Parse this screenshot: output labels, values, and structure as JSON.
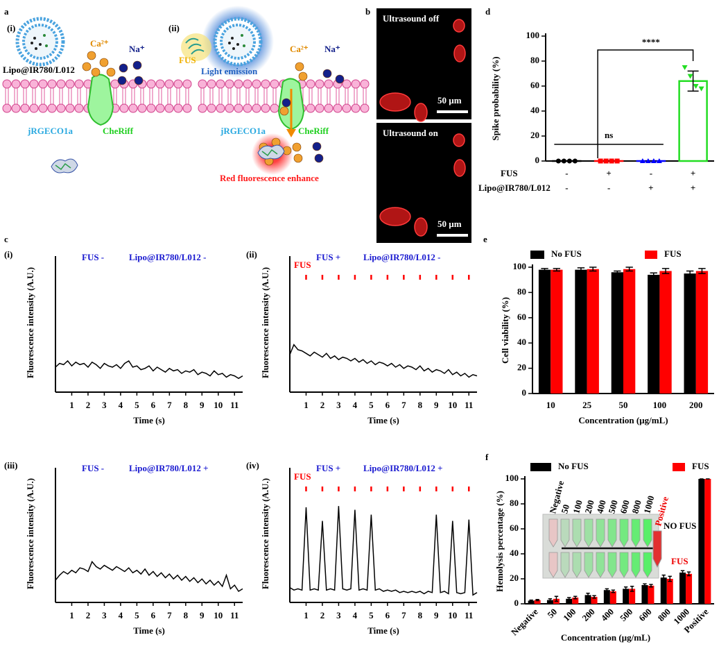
{
  "panel_labels": [
    "a",
    "b",
    "c",
    "d",
    "e",
    "f"
  ],
  "diagram": {
    "sub_labels": [
      "(i)",
      "(ii)"
    ],
    "ions": [
      "Ca²⁺",
      "Na⁺"
    ],
    "liposome": "Lipo@IR780/L012",
    "sensor": "jRGECO1a",
    "channel": "CheRiff",
    "stimulus": "FUS",
    "emission": "Light emission",
    "result": "Red fluorescence enhance"
  },
  "images": {
    "titles": [
      "Ultrasound off",
      "Ultrasound  on"
    ],
    "scale_bar": "50 µm"
  },
  "chart_data": [
    {
      "type": "bar",
      "ylabel": "Spike probability (%)",
      "ylim": [
        0,
        100
      ],
      "yticks": [
        0,
        20,
        40,
        60,
        80,
        100
      ],
      "values": [
        0,
        0,
        0,
        64
      ],
      "errors": [
        0,
        0,
        0,
        8
      ],
      "colors": [
        "#000000",
        "#ff0000",
        "#0000ff",
        "#22dd22"
      ],
      "points": [
        [
          0,
          0,
          0,
          0
        ],
        [
          0,
          0,
          0,
          0
        ],
        [
          0,
          0,
          0,
          0
        ],
        [
          75,
          68,
          60,
          58
        ]
      ],
      "conditions": [
        {
          "name": "FUS",
          "labels": [
            "-",
            "+",
            "-",
            "+"
          ]
        },
        {
          "name": "Lipo@IR780/L012",
          "labels": [
            "-",
            "-",
            "+",
            "+"
          ]
        }
      ],
      "annotations": [
        "ns",
        "****"
      ]
    },
    {
      "type": "bar",
      "ylabel": "Cell viability (%)",
      "xlabel": "Concentration  (µg/mL)",
      "ylim": [
        0,
        100
      ],
      "yticks": [
        0,
        20,
        40,
        60,
        80,
        100
      ],
      "categories": [
        "10",
        "25",
        "50",
        "100",
        "200"
      ],
      "series": [
        {
          "name": "No FUS",
          "color": "#000000",
          "values": [
            98,
            98,
            96,
            94,
            95
          ],
          "errors": [
            1,
            1.5,
            1,
            1.5,
            2
          ]
        },
        {
          "name": "FUS",
          "color": "#ff0000",
          "values": [
            98,
            98.5,
            98.5,
            97,
            97
          ],
          "errors": [
            1,
            1.5,
            1.5,
            2,
            2
          ]
        }
      ]
    },
    {
      "type": "bar",
      "ylabel": "Hemolysis percentage (%)",
      "xlabel": "Concentration (µg/mL)",
      "ylim": [
        0,
        100
      ],
      "yticks": [
        0,
        20,
        40,
        60,
        80,
        100
      ],
      "categories": [
        "Negative",
        "50",
        "100",
        "200",
        "400",
        "500",
        "600",
        "800",
        "1000",
        "Positive"
      ],
      "series": [
        {
          "name": "No FUS",
          "color": "#000000",
          "values": [
            2.5,
            3,
            4,
            7,
            11,
            12,
            15,
            21,
            25,
            100
          ],
          "errors": [
            0.5,
            1,
            1,
            1.5,
            1,
            1.5,
            1,
            2,
            1.5,
            0
          ]
        },
        {
          "name": "FUS",
          "color": "#ff0000",
          "values": [
            3,
            4,
            5,
            5.5,
            10,
            12,
            14.5,
            20,
            24,
            100
          ],
          "errors": [
            0.5,
            2,
            1,
            1,
            1,
            2,
            1,
            2,
            1.5,
            0
          ]
        }
      ],
      "inset": {
        "tube_labels": [
          "Negative",
          "50",
          "100",
          "200",
          "400",
          "500",
          "600",
          "800",
          "1000",
          "Positive"
        ],
        "row_labels": [
          "NO FUS",
          "FUS"
        ]
      }
    },
    {
      "type": "line",
      "panel": "(i)",
      "conditions": [
        "FUS  -",
        "Lipo@IR780/L012  -"
      ],
      "ylabel": "Fluorescence intensity (A.U.)",
      "xlabel": "Time (s)",
      "xlim": [
        0,
        11.5
      ],
      "ylim": [
        0,
        100
      ],
      "xticks": [
        1,
        2,
        3,
        4,
        5,
        6,
        7,
        8,
        9,
        10,
        11
      ],
      "color": "#000000",
      "x": [
        0,
        0.25,
        0.5,
        0.75,
        1,
        1.25,
        1.5,
        1.75,
        2,
        2.25,
        2.5,
        2.75,
        3,
        3.25,
        3.5,
        3.75,
        4,
        4.25,
        4.5,
        4.75,
        5,
        5.25,
        5.5,
        5.75,
        6,
        6.25,
        6.5,
        6.75,
        7,
        7.25,
        7.5,
        7.75,
        8,
        8.25,
        8.5,
        8.75,
        9,
        9.25,
        9.5,
        9.75,
        10,
        10.25,
        10.5,
        10.75,
        11,
        11.25,
        11.5
      ],
      "values": [
        20,
        23,
        22,
        25,
        21,
        24,
        22,
        23,
        20,
        24,
        22,
        19,
        23,
        21,
        20,
        22,
        19,
        23,
        25,
        20,
        21,
        18,
        19,
        21,
        17,
        20,
        18,
        16,
        19,
        17,
        18,
        15,
        17,
        16,
        18,
        14,
        16,
        15,
        13,
        17,
        14,
        15,
        12,
        14,
        13,
        11,
        13
      ]
    },
    {
      "type": "line",
      "panel": "(ii)",
      "conditions": [
        "FUS  +",
        "Lipo@IR780/L012  -"
      ],
      "ylabel": "Fluorescence intensity (A.U.)",
      "xlabel": "Time (s)",
      "xlim": [
        0,
        11.5
      ],
      "ylim": [
        0,
        100
      ],
      "xticks": [
        1,
        2,
        3,
        4,
        5,
        6,
        7,
        8,
        9,
        10,
        11
      ],
      "color": "#000000",
      "pulse_label": "FUS",
      "pulse_color": "#ff0000",
      "pulse_x": [
        1,
        2,
        3,
        4,
        5,
        6,
        7,
        8,
        9,
        10,
        11
      ],
      "x": [
        0,
        0.25,
        0.5,
        0.75,
        1,
        1.25,
        1.5,
        1.75,
        2,
        2.25,
        2.5,
        2.75,
        3,
        3.25,
        3.5,
        3.75,
        4,
        4.25,
        4.5,
        4.75,
        5,
        5.25,
        5.5,
        5.75,
        6,
        6.25,
        6.5,
        6.75,
        7,
        7.25,
        7.5,
        7.75,
        8,
        8.25,
        8.5,
        8.75,
        9,
        9.25,
        9.5,
        9.75,
        10,
        10.25,
        10.5,
        10.75,
        11,
        11.25,
        11.5
      ],
      "values": [
        30,
        38,
        34,
        33,
        31,
        29,
        32,
        30,
        28,
        31,
        27,
        29,
        26,
        28,
        27,
        25,
        27,
        24,
        26,
        23,
        25,
        22,
        24,
        23,
        21,
        23,
        20,
        22,
        19,
        21,
        20,
        18,
        21,
        17,
        19,
        16,
        18,
        17,
        15,
        18,
        14,
        16,
        13,
        15,
        12,
        14,
        13
      ]
    },
    {
      "type": "line",
      "panel": "(iii)",
      "conditions": [
        "FUS  -",
        "Lipo@IR780/L012  +"
      ],
      "ylabel": "Fluorescence intensity (A.U.)",
      "xlabel": "Time (s)",
      "xlim": [
        0,
        11.5
      ],
      "ylim": [
        0,
        100
      ],
      "xticks": [
        1,
        2,
        3,
        4,
        5,
        6,
        7,
        8,
        9,
        10,
        11
      ],
      "color": "#000000",
      "x": [
        0,
        0.25,
        0.5,
        0.75,
        1,
        1.25,
        1.5,
        1.75,
        2,
        2.25,
        2.5,
        2.75,
        3,
        3.25,
        3.5,
        3.75,
        4,
        4.25,
        4.5,
        4.75,
        5,
        5.25,
        5.5,
        5.75,
        6,
        6.25,
        6.5,
        6.75,
        7,
        7.25,
        7.5,
        7.75,
        8,
        8.25,
        8.5,
        8.75,
        9,
        9.25,
        9.5,
        9.75,
        10,
        10.25,
        10.5,
        10.75,
        11,
        11.25,
        11.5
      ],
      "values": [
        18,
        22,
        25,
        23,
        26,
        24,
        28,
        27,
        25,
        33,
        29,
        27,
        30,
        28,
        26,
        29,
        27,
        25,
        28,
        24,
        26,
        23,
        27,
        22,
        25,
        21,
        24,
        20,
        23,
        19,
        22,
        18,
        21,
        17,
        20,
        16,
        19,
        15,
        18,
        14,
        17,
        13,
        22,
        11,
        14,
        9,
        11
      ]
    },
    {
      "type": "line",
      "panel": "(iv)",
      "conditions": [
        "FUS  +",
        "Lipo@IR780/L012  +"
      ],
      "ylabel": "Fluorescence intensity (A.U.)",
      "xlabel": "Time (s)",
      "xlim": [
        0,
        11.5
      ],
      "ylim": [
        0,
        100
      ],
      "xticks": [
        1,
        2,
        3,
        4,
        5,
        6,
        7,
        8,
        9,
        10,
        11
      ],
      "color": "#000000",
      "pulse_label": "FUS",
      "pulse_color": "#ff0000",
      "pulse_x": [
        1,
        2,
        3,
        4,
        5,
        6,
        7,
        8,
        9,
        10,
        11
      ],
      "x": [
        0,
        0.25,
        0.5,
        0.75,
        1,
        1.25,
        1.5,
        1.75,
        2,
        2.25,
        2.5,
        2.75,
        3,
        3.25,
        3.5,
        3.75,
        4,
        4.25,
        4.5,
        4.75,
        5,
        5.25,
        5.5,
        5.75,
        6,
        6.25,
        6.5,
        6.75,
        7,
        7.25,
        7.5,
        7.75,
        8,
        8.25,
        8.5,
        8.75,
        9,
        9.25,
        9.5,
        9.75,
        10,
        10.25,
        10.5,
        10.75,
        11,
        11.25,
        11.5
      ],
      "values": [
        12,
        10,
        11,
        10,
        77,
        10,
        11,
        10,
        66,
        10,
        11,
        10,
        78,
        11,
        10,
        11,
        75,
        10,
        11,
        10,
        71,
        10,
        11,
        9,
        10,
        9,
        10,
        8,
        9,
        8,
        9,
        8,
        9,
        7,
        9,
        8,
        71,
        8,
        9,
        7,
        66,
        8,
        7,
        8,
        67,
        6,
        8
      ]
    }
  ]
}
